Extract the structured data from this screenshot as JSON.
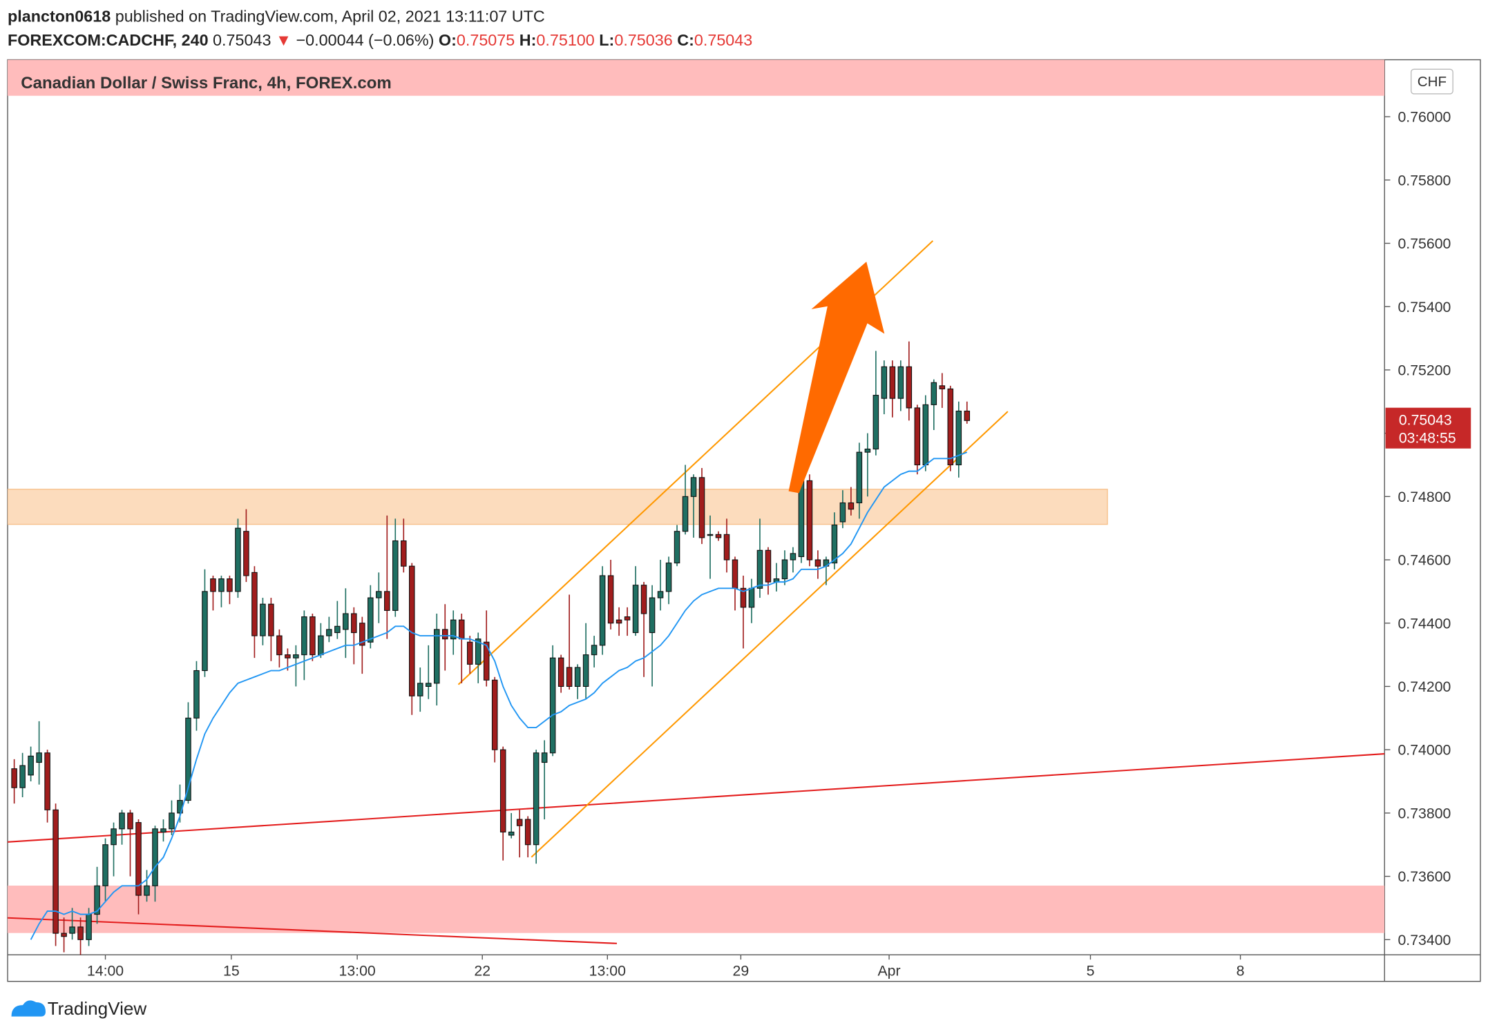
{
  "header": {
    "author": "plancton0618",
    "published": "published on TradingView.com, April 02, 2021 13:11:07 UTC",
    "symbol": "FOREXCOM:CADCHF, 240",
    "last": "0.75043",
    "arrow": "▼",
    "change": "−0.00044 (−0.06%)",
    "o_label": "O:",
    "o": "0.75075",
    "h_label": "H:",
    "h": "0.75100",
    "l_label": "L:",
    "l": "0.75036",
    "c_label": "C:",
    "c": "0.75043"
  },
  "footer": {
    "brand": "TradingView"
  },
  "chart_data": {
    "type": "candlestick",
    "title": "Canadian Dollar / Swiss Franc, 4h, FOREX.com",
    "currency": "CHF",
    "last_price_label": "0.75043",
    "countdown": "03:48:55",
    "up_color": "#1f6f62",
    "down_color": "#a11d1d",
    "ma_color": "#2196f3",
    "xlim": [
      -0.8,
      165.4
    ],
    "ylim": [
      0.73352,
      0.7618
    ],
    "yticks": [
      {
        "value": 0.76,
        "label": "0.76000"
      },
      {
        "value": 0.758,
        "label": "0.75800"
      },
      {
        "value": 0.756,
        "label": "0.75600"
      },
      {
        "value": 0.754,
        "label": "0.75400"
      },
      {
        "value": 0.752,
        "label": "0.75200"
      },
      {
        "value": 0.75,
        "label": "0.75000"
      },
      {
        "value": 0.748,
        "label": "0.74800"
      },
      {
        "value": 0.746,
        "label": "0.74600"
      },
      {
        "value": 0.744,
        "label": "0.74400"
      },
      {
        "value": 0.742,
        "label": "0.74200"
      },
      {
        "value": 0.74,
        "label": "0.74000"
      },
      {
        "value": 0.738,
        "label": "0.73800"
      },
      {
        "value": 0.736,
        "label": "0.73600"
      },
      {
        "value": 0.734,
        "label": "0.73400"
      }
    ],
    "xticks": [
      {
        "value": 11,
        "label": "14:00"
      },
      {
        "value": 26.2,
        "label": "15"
      },
      {
        "value": 41.4,
        "label": "13:00"
      },
      {
        "value": 56.5,
        "label": "22"
      },
      {
        "value": 71.6,
        "label": "13:00"
      },
      {
        "value": 87.7,
        "label": "29"
      },
      {
        "value": 105.6,
        "label": "Apr"
      },
      {
        "value": 129.9,
        "label": "5"
      },
      {
        "value": 148,
        "label": "8"
      }
    ],
    "candles": [
      [
        0.7394,
        0.7397,
        0.7383,
        0.7388
      ],
      [
        0.7388,
        0.7399,
        0.7385,
        0.7395
      ],
      [
        0.7392,
        0.7401,
        0.739,
        0.7398
      ],
      [
        0.7396,
        0.7409,
        0.7389,
        0.7399
      ],
      [
        0.7399,
        0.74,
        0.7377,
        0.7381
      ],
      [
        0.7381,
        0.7383,
        0.7338,
        0.7342
      ],
      [
        0.7342,
        0.7347,
        0.7336,
        0.7341
      ],
      [
        0.7342,
        0.735,
        0.734,
        0.7344
      ],
      [
        0.7344,
        0.7347,
        0.7334,
        0.734
      ],
      [
        0.734,
        0.735,
        0.7338,
        0.7348
      ],
      [
        0.7348,
        0.7363,
        0.7345,
        0.7357
      ],
      [
        0.7357,
        0.7372,
        0.7352,
        0.737
      ],
      [
        0.737,
        0.7377,
        0.736,
        0.7375
      ],
      [
        0.7375,
        0.7381,
        0.737,
        0.738
      ],
      [
        0.738,
        0.7381,
        0.736,
        0.7375
      ],
      [
        0.7377,
        0.7378,
        0.7348,
        0.7354
      ],
      [
        0.7354,
        0.7362,
        0.7352,
        0.7357
      ],
      [
        0.7357,
        0.7376,
        0.7352,
        0.7375
      ],
      [
        0.7374,
        0.7378,
        0.7371,
        0.7375
      ],
      [
        0.7375,
        0.7384,
        0.7373,
        0.738
      ],
      [
        0.738,
        0.7389,
        0.7377,
        0.7384
      ],
      [
        0.7384,
        0.7415,
        0.7383,
        0.741
      ],
      [
        0.741,
        0.7428,
        0.7406,
        0.7425
      ],
      [
        0.7425,
        0.7457,
        0.7423,
        0.745
      ],
      [
        0.7454,
        0.7455,
        0.7444,
        0.745
      ],
      [
        0.745,
        0.7455,
        0.7445,
        0.7454
      ],
      [
        0.7454,
        0.7455,
        0.7446,
        0.745
      ],
      [
        0.745,
        0.7473,
        0.7448,
        0.747
      ],
      [
        0.7469,
        0.7476,
        0.7453,
        0.7455
      ],
      [
        0.7456,
        0.7458,
        0.7429,
        0.7436
      ],
      [
        0.7436,
        0.7448,
        0.7433,
        0.7446
      ],
      [
        0.7446,
        0.7448,
        0.7428,
        0.7436
      ],
      [
        0.7436,
        0.7438,
        0.7426,
        0.743
      ],
      [
        0.743,
        0.7432,
        0.7425,
        0.7429
      ],
      [
        0.7429,
        0.7433,
        0.742,
        0.743
      ],
      [
        0.743,
        0.7444,
        0.7422,
        0.7442
      ],
      [
        0.7442,
        0.7443,
        0.7428,
        0.743
      ],
      [
        0.743,
        0.744,
        0.7429,
        0.7436
      ],
      [
        0.7436,
        0.7442,
        0.7434,
        0.7438
      ],
      [
        0.7437,
        0.7447,
        0.7435,
        0.7439
      ],
      [
        0.7438,
        0.7451,
        0.7429,
        0.7443
      ],
      [
        0.7443,
        0.7445,
        0.7427,
        0.7437
      ],
      [
        0.744,
        0.7442,
        0.7424,
        0.7433
      ],
      [
        0.7434,
        0.7452,
        0.7432,
        0.7448
      ],
      [
        0.7448,
        0.7456,
        0.744,
        0.745
      ],
      [
        0.745,
        0.7474,
        0.7435,
        0.7444
      ],
      [
        0.7444,
        0.7473,
        0.7442,
        0.7466
      ],
      [
        0.7466,
        0.7473,
        0.7456,
        0.7458
      ],
      [
        0.7458,
        0.7459,
        0.7411,
        0.7417
      ],
      [
        0.7417,
        0.7426,
        0.7412,
        0.7421
      ],
      [
        0.742,
        0.7433,
        0.7416,
        0.7421
      ],
      [
        0.7421,
        0.7443,
        0.7414,
        0.7438
      ],
      [
        0.7438,
        0.7446,
        0.7425,
        0.7435
      ],
      [
        0.7435,
        0.7444,
        0.743,
        0.7441
      ],
      [
        0.7441,
        0.7443,
        0.7421,
        0.7435
      ],
      [
        0.7434,
        0.7436,
        0.7424,
        0.7427
      ],
      [
        0.7427,
        0.7437,
        0.7421,
        0.7435
      ],
      [
        0.7434,
        0.7444,
        0.742,
        0.7422
      ],
      [
        0.7422,
        0.7423,
        0.7396,
        0.74
      ],
      [
        0.74,
        0.7401,
        0.7365,
        0.7374
      ],
      [
        0.7373,
        0.738,
        0.7372,
        0.7374
      ],
      [
        0.7378,
        0.7381,
        0.7366,
        0.7376
      ],
      [
        0.7378,
        0.7379,
        0.7366,
        0.737
      ],
      [
        0.737,
        0.74,
        0.7364,
        0.7399
      ],
      [
        0.7396,
        0.7403,
        0.7378,
        0.7399
      ],
      [
        0.7399,
        0.7433,
        0.7398,
        0.7429
      ],
      [
        0.7429,
        0.743,
        0.7418,
        0.742
      ],
      [
        0.7426,
        0.7449,
        0.7419,
        0.742
      ],
      [
        0.742,
        0.7427,
        0.7416,
        0.7426
      ],
      [
        0.742,
        0.744,
        0.7416,
        0.743
      ],
      [
        0.743,
        0.7436,
        0.7426,
        0.7433
      ],
      [
        0.7433,
        0.7458,
        0.743,
        0.7455
      ],
      [
        0.7455,
        0.746,
        0.7438,
        0.744
      ],
      [
        0.7441,
        0.7445,
        0.7436,
        0.744
      ],
      [
        0.7442,
        0.7445,
        0.7436,
        0.7441
      ],
      [
        0.7437,
        0.7458,
        0.7436,
        0.7452
      ],
      [
        0.7452,
        0.7453,
        0.7423,
        0.7443
      ],
      [
        0.7437,
        0.7452,
        0.742,
        0.7448
      ],
      [
        0.7448,
        0.746,
        0.7444,
        0.745
      ],
      [
        0.745,
        0.7461,
        0.7446,
        0.7459
      ],
      [
        0.7459,
        0.7471,
        0.7458,
        0.7469
      ],
      [
        0.7469,
        0.749,
        0.7468,
        0.748
      ],
      [
        0.748,
        0.7487,
        0.7467,
        0.7486
      ],
      [
        0.7486,
        0.7489,
        0.7465,
        0.7467
      ],
      [
        0.7468,
        0.7474,
        0.7454,
        0.7468
      ],
      [
        0.7468,
        0.7469,
        0.7466,
        0.7467
      ],
      [
        0.7468,
        0.7473,
        0.7456,
        0.746
      ],
      [
        0.746,
        0.7461,
        0.7444,
        0.7451
      ],
      [
        0.7451,
        0.7455,
        0.7432,
        0.7445
      ],
      [
        0.7445,
        0.7454,
        0.744,
        0.7451
      ],
      [
        0.7451,
        0.7473,
        0.7448,
        0.7463
      ],
      [
        0.7463,
        0.7464,
        0.7449,
        0.7453
      ],
      [
        0.7453,
        0.7459,
        0.745,
        0.7454
      ],
      [
        0.7454,
        0.7463,
        0.7452,
        0.746
      ],
      [
        0.746,
        0.7464,
        0.7456,
        0.7462
      ],
      [
        0.7461,
        0.7489,
        0.7459,
        0.7485
      ],
      [
        0.7485,
        0.7487,
        0.7458,
        0.746
      ],
      [
        0.746,
        0.7463,
        0.7454,
        0.7458
      ],
      [
        0.7458,
        0.7461,
        0.7452,
        0.746
      ],
      [
        0.7459,
        0.7475,
        0.7457,
        0.7471
      ],
      [
        0.7472,
        0.7482,
        0.747,
        0.7478
      ],
      [
        0.7478,
        0.7483,
        0.7474,
        0.7476
      ],
      [
        0.7478,
        0.7497,
        0.7473,
        0.7494
      ],
      [
        0.7494,
        0.75,
        0.748,
        0.7495
      ],
      [
        0.7495,
        0.7526,
        0.7493,
        0.7512
      ],
      [
        0.7511,
        0.7523,
        0.7506,
        0.7521
      ],
      [
        0.7521,
        0.7523,
        0.7505,
        0.7511
      ],
      [
        0.7511,
        0.7523,
        0.7507,
        0.7521
      ],
      [
        0.7521,
        0.7529,
        0.7504,
        0.7508
      ],
      [
        0.7508,
        0.7509,
        0.7487,
        0.749
      ],
      [
        0.749,
        0.7512,
        0.7488,
        0.7509
      ],
      [
        0.7509,
        0.7517,
        0.7501,
        0.7516
      ],
      [
        0.7515,
        0.7519,
        0.7508,
        0.7514
      ],
      [
        0.7514,
        0.7515,
        0.7488,
        0.749
      ],
      [
        0.749,
        0.751,
        0.7486,
        0.7507
      ],
      [
        0.7507,
        0.751,
        0.7503,
        0.7504
      ]
    ],
    "ma": [
      null,
      null,
      0.734,
      0.7345,
      0.7349,
      0.7349,
      0.7348,
      0.7349,
      0.7348,
      0.7348,
      0.7349,
      0.7352,
      0.7355,
      0.7357,
      0.7357,
      0.7357,
      0.7359,
      0.7363,
      0.7366,
      0.7372,
      0.7379,
      0.7388,
      0.7397,
      0.7405,
      0.741,
      0.7414,
      0.7418,
      0.7421,
      0.7422,
      0.7423,
      0.7424,
      0.7425,
      0.7425,
      0.7426,
      0.7427,
      0.7428,
      0.7429,
      0.743,
      0.7431,
      0.7432,
      0.7433,
      0.7433,
      0.7434,
      0.7435,
      0.7436,
      0.7437,
      0.7439,
      0.7439,
      0.7437,
      0.7436,
      0.7436,
      0.7436,
      0.7436,
      0.7436,
      0.7435,
      0.7435,
      0.7434,
      0.7433,
      0.7428,
      0.742,
      0.7414,
      0.741,
      0.7407,
      0.7407,
      0.7409,
      0.7411,
      0.7412,
      0.7414,
      0.7415,
      0.7416,
      0.7418,
      0.7421,
      0.7423,
      0.7425,
      0.7426,
      0.7428,
      0.7429,
      0.7431,
      0.7433,
      0.7436,
      0.744,
      0.7444,
      0.7447,
      0.7449,
      0.745,
      0.7451,
      0.7451,
      0.7451,
      0.745,
      0.7451,
      0.7452,
      0.7452,
      0.7453,
      0.7453,
      0.7454,
      0.7457,
      0.7457,
      0.7457,
      0.7458,
      0.746,
      0.7462,
      0.7465,
      0.747,
      0.7475,
      0.7479,
      0.7483,
      0.7485,
      0.7487,
      0.7488,
      0.7488,
      0.749,
      0.7492,
      0.7492,
      0.7492,
      0.7493,
      0.7494
    ]
  }
}
